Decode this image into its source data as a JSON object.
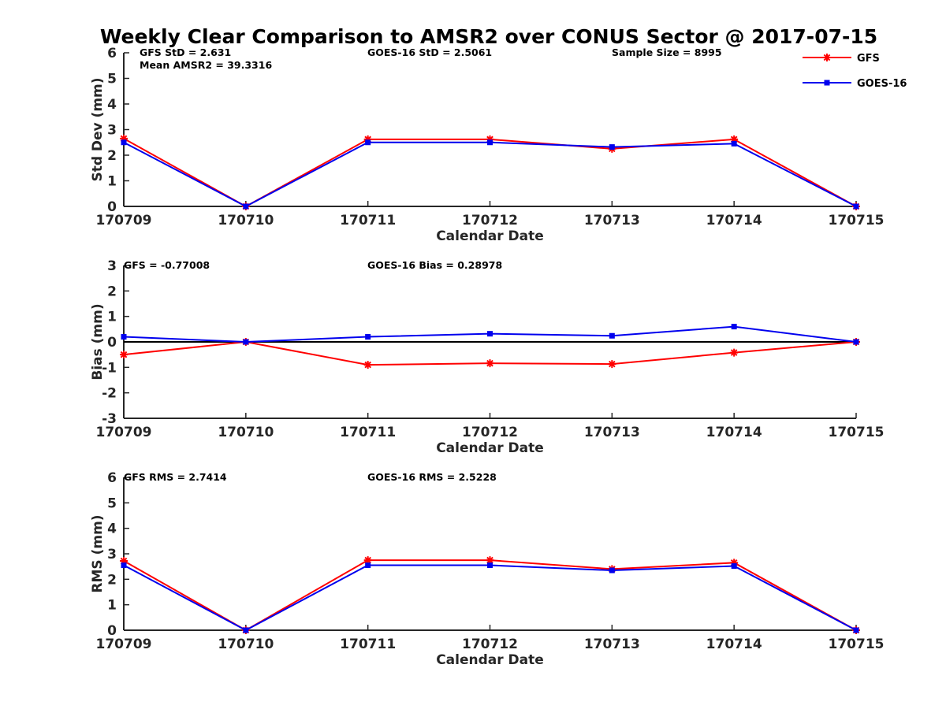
{
  "title": "Weekly Clear Comparison to AMSR2 over CONUS Sector @ 2017-07-15",
  "colors": {
    "GFS": "#ff0000",
    "GOES-16": "#0000ee",
    "zero_line": "#000000"
  },
  "legend": {
    "placement": "top-right",
    "items": [
      {
        "label": "GFS",
        "marker": "asterisk"
      },
      {
        "label": "GOES-16",
        "marker": "square"
      }
    ]
  },
  "chart_data": [
    {
      "type": "line",
      "xlabel": "Calendar Date",
      "ylabel": "Std Dev (mm)",
      "ylim": [
        0,
        6
      ],
      "yticks": [
        "0",
        "1",
        "2",
        "3",
        "4",
        "5",
        "6"
      ],
      "categories": [
        "170709",
        "170710",
        "170711",
        "170712",
        "170713",
        "170714",
        "170715"
      ],
      "annotations": [
        {
          "text": "GFS StD = 2.631",
          "pos": "left"
        },
        {
          "text": "Mean AMSR2 = 39.3316",
          "pos": "left2"
        },
        {
          "text": "GOES-16 StD = 2.5061",
          "pos": "mid"
        },
        {
          "text": "Sample Size = 8995",
          "pos": "right"
        }
      ],
      "series": [
        {
          "name": "GFS",
          "values": [
            2.65,
            0.0,
            2.62,
            2.62,
            2.25,
            2.62,
            0.0
          ]
        },
        {
          "name": "GOES-16",
          "values": [
            2.5,
            0.0,
            2.5,
            2.5,
            2.32,
            2.45,
            0.0
          ]
        }
      ],
      "zero_line": false
    },
    {
      "type": "line",
      "xlabel": "Calendar Date",
      "ylabel": "Bias (mm)",
      "ylim": [
        -3,
        3
      ],
      "yticks": [
        "-3",
        "-2",
        "-1",
        "0",
        "1",
        "2",
        "3"
      ],
      "categories": [
        "170709",
        "170710",
        "170711",
        "170712",
        "170713",
        "170714",
        "170715"
      ],
      "annotations": [
        {
          "text": "GFS = -0.77008",
          "pos": "left"
        },
        {
          "text": "GOES-16 Bias  = 0.28978",
          "pos": "mid"
        }
      ],
      "series": [
        {
          "name": "GFS",
          "values": [
            -0.5,
            0.0,
            -0.9,
            -0.84,
            -0.87,
            -0.42,
            0.0
          ]
        },
        {
          "name": "GOES-16",
          "values": [
            0.2,
            0.0,
            0.2,
            0.32,
            0.24,
            0.6,
            0.0
          ]
        }
      ],
      "zero_line": true
    },
    {
      "type": "line",
      "xlabel": "Calendar Date",
      "ylabel": "RMS (mm)",
      "ylim": [
        0,
        6
      ],
      "yticks": [
        "0",
        "1",
        "2",
        "3",
        "4",
        "5",
        "6"
      ],
      "categories": [
        "170709",
        "170710",
        "170711",
        "170712",
        "170713",
        "170714",
        "170715"
      ],
      "annotations": [
        {
          "text": "GFS RMS = 2.7414",
          "pos": "left"
        },
        {
          "text": "GOES-16 RMS = 2.5228",
          "pos": "mid"
        }
      ],
      "series": [
        {
          "name": "GFS",
          "values": [
            2.72,
            0.0,
            2.75,
            2.75,
            2.4,
            2.65,
            0.0
          ]
        },
        {
          "name": "GOES-16",
          "values": [
            2.55,
            0.0,
            2.55,
            2.55,
            2.35,
            2.52,
            0.0
          ]
        }
      ],
      "zero_line": false
    }
  ]
}
